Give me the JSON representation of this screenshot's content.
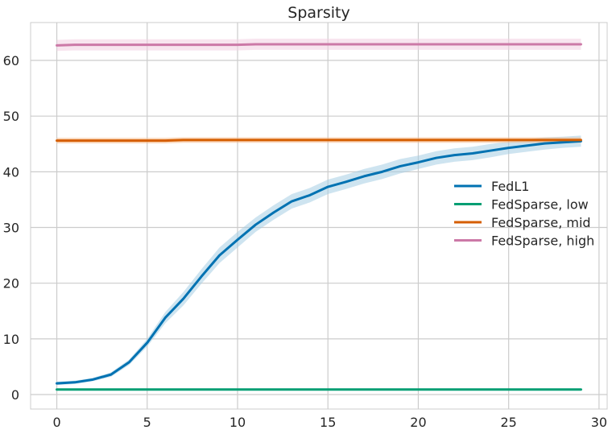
{
  "chart_data": {
    "type": "line",
    "title": "Sparsity",
    "xlabel": "",
    "ylabel": "",
    "xlim": [
      -1.45,
      30.45
    ],
    "ylim": [
      -2.6,
      66.8
    ],
    "xticks": [
      0,
      5,
      10,
      15,
      20,
      25,
      30
    ],
    "yticks": [
      0,
      10,
      20,
      30,
      40,
      50,
      60
    ],
    "grid": true,
    "legend_position": "center-right",
    "series": [
      {
        "name": "FedL1",
        "color": "#0072b2",
        "band_color": "#a6cee3",
        "x": [
          0,
          1,
          2,
          3,
          4,
          5,
          6,
          7,
          8,
          9,
          10,
          11,
          12,
          13,
          14,
          15,
          16,
          17,
          18,
          19,
          20,
          21,
          22,
          23,
          24,
          25,
          26,
          27,
          28,
          29
        ],
        "y": [
          2.0,
          2.2,
          2.7,
          3.6,
          5.8,
          9.3,
          13.8,
          17.2,
          21.2,
          25.0,
          27.8,
          30.5,
          32.7,
          34.7,
          35.8,
          37.3,
          38.2,
          39.2,
          40.0,
          41.0,
          41.7,
          42.5,
          43.0,
          43.3,
          43.8,
          44.3,
          44.7,
          45.1,
          45.3,
          45.5
        ],
        "band": [
          0.3,
          0.3,
          0.3,
          0.4,
          0.5,
          0.7,
          1.0,
          1.2,
          1.3,
          1.4,
          1.4,
          1.3,
          1.3,
          1.3,
          1.3,
          1.3,
          1.3,
          1.3,
          1.3,
          1.3,
          1.2,
          1.2,
          1.2,
          1.2,
          1.2,
          1.1,
          1.1,
          1.1,
          1.0,
          1.0
        ]
      },
      {
        "name": "FedSparse, low",
        "color": "#009e73",
        "band_color": "#99d8c9",
        "x": [
          0,
          29
        ],
        "y": [
          0.9,
          0.9
        ],
        "band": [
          0.1,
          0.1
        ]
      },
      {
        "name": "FedSparse, mid",
        "color": "#d55e00",
        "band_color": "#f5b98a",
        "x": [
          0,
          1,
          2,
          3,
          4,
          5,
          6,
          7,
          8,
          9,
          10,
          11,
          12,
          13,
          14,
          15,
          16,
          17,
          18,
          19,
          20,
          21,
          22,
          23,
          24,
          25,
          26,
          27,
          28,
          29
        ],
        "y": [
          45.6,
          45.6,
          45.6,
          45.6,
          45.6,
          45.6,
          45.6,
          45.7,
          45.7,
          45.7,
          45.7,
          45.7,
          45.7,
          45.7,
          45.7,
          45.7,
          45.7,
          45.7,
          45.7,
          45.7,
          45.7,
          45.7,
          45.7,
          45.7,
          45.7,
          45.7,
          45.7,
          45.7,
          45.7,
          45.7
        ],
        "band": [
          0.5,
          0.5,
          0.5,
          0.5,
          0.5,
          0.5,
          0.5,
          0.5,
          0.5,
          0.5,
          0.5,
          0.5,
          0.5,
          0.5,
          0.5,
          0.5,
          0.5,
          0.5,
          0.5,
          0.5,
          0.5,
          0.5,
          0.5,
          0.5,
          0.5,
          0.5,
          0.5,
          0.5,
          0.5,
          0.5
        ]
      },
      {
        "name": "FedSparse, high",
        "color": "#cc79a7",
        "band_color": "#f2cfe2",
        "x": [
          0,
          1,
          2,
          3,
          4,
          5,
          6,
          7,
          8,
          9,
          10,
          11,
          12,
          13,
          14,
          15,
          16,
          17,
          18,
          19,
          20,
          21,
          22,
          23,
          24,
          25,
          26,
          27,
          28,
          29
        ],
        "y": [
          62.7,
          62.8,
          62.8,
          62.8,
          62.8,
          62.8,
          62.8,
          62.8,
          62.8,
          62.8,
          62.8,
          62.9,
          62.9,
          62.9,
          62.9,
          62.9,
          62.9,
          62.9,
          62.9,
          62.9,
          62.9,
          62.9,
          62.9,
          62.9,
          62.9,
          62.9,
          62.9,
          62.9,
          62.9,
          62.9
        ],
        "band": [
          1.0,
          1.0,
          1.0,
          1.0,
          1.0,
          1.0,
          1.0,
          1.0,
          1.0,
          1.0,
          1.0,
          1.0,
          1.0,
          1.0,
          1.0,
          1.0,
          1.0,
          1.0,
          1.0,
          1.0,
          1.0,
          1.0,
          1.0,
          1.0,
          1.0,
          1.0,
          1.0,
          1.0,
          1.0,
          1.0
        ]
      }
    ]
  }
}
